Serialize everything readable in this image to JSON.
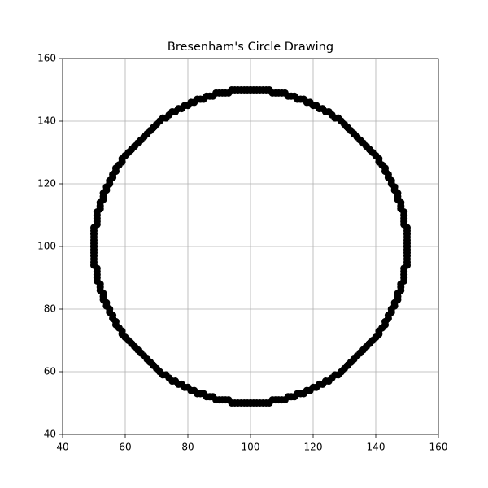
{
  "chart_data": {
    "type": "scatter",
    "title": "Bresenham's Circle Drawing",
    "color": "#000000",
    "grid": true,
    "xlim": [
      40,
      160
    ],
    "ylim": [
      40,
      160
    ],
    "xticks": [
      40,
      60,
      80,
      100,
      120,
      140,
      160
    ],
    "yticks": [
      40,
      60,
      80,
      100,
      120,
      140,
      160
    ],
    "x": [
      100,
      101,
      102,
      103,
      104,
      105,
      106,
      107,
      108,
      109,
      110,
      111,
      112,
      113,
      114,
      115,
      116,
      117,
      118,
      119,
      120,
      121,
      122,
      123,
      124,
      125,
      126,
      127,
      128,
      129,
      130,
      131,
      132,
      133,
      134,
      100,
      99,
      98,
      97,
      96,
      95,
      94,
      93,
      92,
      91,
      90,
      89,
      88,
      87,
      86,
      85,
      84,
      83,
      82,
      81,
      80,
      79,
      78,
      77,
      76,
      75,
      74,
      73,
      72,
      71,
      70,
      69,
      68,
      67,
      66,
      100,
      101,
      102,
      103,
      104,
      105,
      106,
      107,
      108,
      109,
      110,
      111,
      112,
      113,
      114,
      115,
      116,
      117,
      118,
      119,
      120,
      121,
      122,
      123,
      124,
      125,
      126,
      127,
      128,
      129,
      130,
      131,
      132,
      133,
      134,
      100,
      99,
      98,
      97,
      96,
      95,
      94,
      93,
      92,
      91,
      90,
      89,
      88,
      87,
      86,
      85,
      84,
      83,
      82,
      81,
      80,
      79,
      78,
      77,
      76,
      75,
      74,
      73,
      72,
      71,
      70,
      69,
      68,
      67,
      66,
      150,
      150,
      150,
      150,
      150,
      150,
      150,
      149,
      149,
      149,
      149,
      149,
      148,
      148,
      148,
      147,
      147,
      147,
      146,
      146,
      145,
      145,
      144,
      144,
      143,
      143,
      142,
      141,
      141,
      140,
      139,
      138,
      137,
      136,
      135,
      50,
      50,
      50,
      50,
      50,
      50,
      50,
      51,
      51,
      51,
      51,
      51,
      52,
      52,
      52,
      53,
      53,
      53,
      54,
      54,
      55,
      55,
      56,
      56,
      57,
      57,
      58,
      59,
      59,
      60,
      61,
      62,
      63,
      64,
      65,
      150,
      150,
      150,
      150,
      150,
      150,
      150,
      149,
      149,
      149,
      149,
      149,
      148,
      148,
      148,
      147,
      147,
      147,
      146,
      146,
      145,
      145,
      144,
      144,
      143,
      143,
      142,
      141,
      141,
      140,
      139,
      138,
      137,
      136,
      135,
      50,
      50,
      50,
      50,
      50,
      50,
      50,
      51,
      51,
      51,
      51,
      51,
      52,
      52,
      52,
      53,
      53,
      53,
      54,
      54,
      55,
      55,
      56,
      56,
      57,
      57,
      58,
      59,
      59,
      60,
      61,
      62,
      63,
      64,
      65
    ],
    "y": [
      150,
      150,
      150,
      150,
      150,
      150,
      150,
      149,
      149,
      149,
      149,
      149,
      148,
      148,
      148,
      147,
      147,
      147,
      146,
      146,
      145,
      145,
      144,
      144,
      143,
      143,
      142,
      141,
      141,
      140,
      139,
      138,
      137,
      136,
      135,
      150,
      150,
      150,
      150,
      150,
      150,
      150,
      149,
      149,
      149,
      149,
      149,
      148,
      148,
      148,
      147,
      147,
      147,
      146,
      146,
      145,
      145,
      144,
      144,
      143,
      143,
      142,
      141,
      141,
      140,
      139,
      138,
      137,
      136,
      135,
      50,
      50,
      50,
      50,
      50,
      50,
      50,
      51,
      51,
      51,
      51,
      51,
      52,
      52,
      52,
      53,
      53,
      53,
      54,
      54,
      55,
      55,
      56,
      56,
      57,
      57,
      58,
      59,
      59,
      60,
      61,
      62,
      63,
      64,
      65,
      50,
      50,
      50,
      50,
      50,
      50,
      50,
      51,
      51,
      51,
      51,
      51,
      52,
      52,
      52,
      53,
      53,
      53,
      54,
      54,
      55,
      55,
      56,
      56,
      57,
      57,
      58,
      59,
      59,
      60,
      61,
      62,
      63,
      64,
      65,
      100,
      101,
      102,
      103,
      104,
      105,
      106,
      107,
      108,
      109,
      110,
      111,
      112,
      113,
      114,
      115,
      116,
      117,
      118,
      119,
      120,
      121,
      122,
      123,
      124,
      125,
      126,
      127,
      128,
      129,
      130,
      131,
      132,
      133,
      134,
      100,
      101,
      102,
      103,
      104,
      105,
      106,
      107,
      108,
      109,
      110,
      111,
      112,
      113,
      114,
      115,
      116,
      117,
      118,
      119,
      120,
      121,
      122,
      123,
      124,
      125,
      126,
      127,
      128,
      129,
      130,
      131,
      132,
      133,
      134,
      100,
      99,
      98,
      97,
      96,
      95,
      94,
      93,
      92,
      91,
      90,
      89,
      88,
      87,
      86,
      85,
      84,
      83,
      82,
      81,
      80,
      79,
      78,
      77,
      76,
      75,
      74,
      73,
      72,
      71,
      70,
      69,
      68,
      67,
      66,
      100,
      99,
      98,
      97,
      96,
      95,
      94,
      93,
      92,
      91,
      90,
      89,
      88,
      87,
      86,
      85,
      84,
      83,
      82,
      81,
      80,
      79,
      78,
      77,
      76,
      75,
      74,
      73,
      72,
      71,
      70,
      69,
      68,
      67,
      66
    ]
  }
}
